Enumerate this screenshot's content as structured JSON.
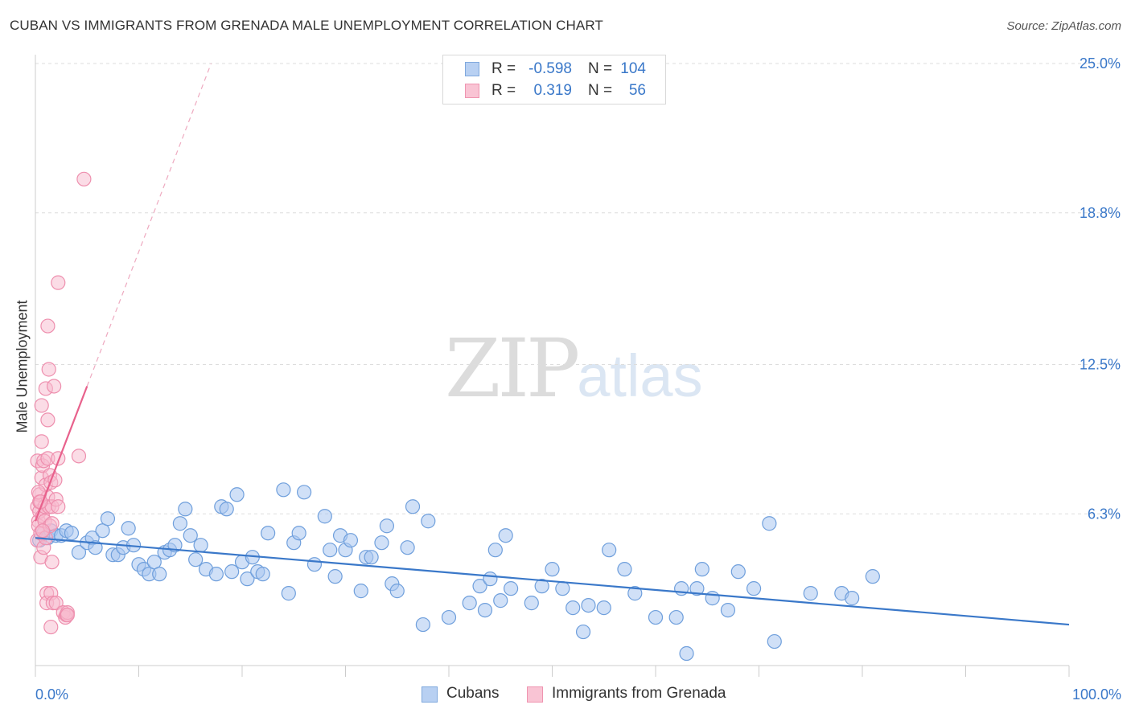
{
  "title": "CUBAN VS IMMIGRANTS FROM GRENADA MALE UNEMPLOYMENT CORRELATION CHART",
  "source": "Source: ZipAtlas.com",
  "watermark": {
    "zip": "ZIP",
    "atlas": "atlas"
  },
  "legend": {
    "r_label": "R =",
    "n_label": "N =",
    "rows": [
      {
        "r": "-0.598",
        "n": "104",
        "fill": "#b8d0f2",
        "stroke": "#7fa8dd"
      },
      {
        "r": "0.319",
        "n": "56",
        "fill": "#f9c4d4",
        "stroke": "#ef94b0"
      }
    ]
  },
  "bottom_legend": [
    {
      "label": "Cubans",
      "fill": "#b8d0f2",
      "stroke": "#7fa8dd"
    },
    {
      "label": "Immigrants from Grenada",
      "fill": "#f9c4d4",
      "stroke": "#ef94b0"
    }
  ],
  "chart_data": {
    "type": "scatter",
    "title": "CUBAN VS IMMIGRANTS FROM GRENADA MALE UNEMPLOYMENT CORRELATION CHART",
    "ylabel": "Male Unemployment",
    "xlabel": "",
    "xlim": [
      0,
      100
    ],
    "ylim": [
      0,
      25
    ],
    "x_tick_labels": [
      "0.0%",
      "100.0%"
    ],
    "y_ticks": [
      6.3,
      12.5,
      18.8,
      25.0
    ],
    "y_tick_labels": [
      "6.3%",
      "12.5%",
      "18.8%",
      "25.0%"
    ],
    "grid": true,
    "legend_position": "top-center",
    "colors": {
      "cubans": "#3a78c9",
      "grenada": "#e8618c"
    },
    "series": [
      {
        "name": "Cubans",
        "points": [
          [
            0.4,
            5.2
          ],
          [
            0.8,
            5.5
          ],
          [
            1.2,
            5.3
          ],
          [
            1.5,
            5.6
          ],
          [
            2.0,
            5.4
          ],
          [
            2.5,
            5.4
          ],
          [
            3.0,
            5.6
          ],
          [
            3.5,
            5.5
          ],
          [
            4.2,
            4.7
          ],
          [
            5.0,
            5.1
          ],
          [
            5.5,
            5.3
          ],
          [
            5.8,
            4.9
          ],
          [
            6.5,
            5.6
          ],
          [
            7.0,
            6.1
          ],
          [
            7.5,
            4.6
          ],
          [
            8.0,
            4.6
          ],
          [
            8.5,
            4.9
          ],
          [
            9.0,
            5.7
          ],
          [
            9.5,
            5.0
          ],
          [
            10.0,
            4.2
          ],
          [
            10.5,
            4.0
          ],
          [
            11.0,
            3.8
          ],
          [
            11.5,
            4.3
          ],
          [
            12.0,
            3.8
          ],
          [
            12.5,
            4.7
          ],
          [
            13.0,
            4.8
          ],
          [
            13.5,
            5.0
          ],
          [
            14.0,
            5.9
          ],
          [
            14.5,
            6.5
          ],
          [
            15.0,
            5.4
          ],
          [
            15.5,
            4.4
          ],
          [
            16.0,
            5.0
          ],
          [
            16.5,
            4.0
          ],
          [
            17.5,
            3.8
          ],
          [
            18.0,
            6.6
          ],
          [
            18.5,
            6.5
          ],
          [
            19.0,
            3.9
          ],
          [
            19.5,
            7.1
          ],
          [
            20.0,
            4.3
          ],
          [
            20.5,
            3.6
          ],
          [
            21.0,
            4.5
          ],
          [
            21.5,
            3.9
          ],
          [
            22.0,
            3.8
          ],
          [
            22.5,
            5.5
          ],
          [
            24.0,
            7.3
          ],
          [
            24.5,
            3.0
          ],
          [
            25.0,
            5.1
          ],
          [
            25.5,
            5.5
          ],
          [
            26.0,
            7.2
          ],
          [
            27.0,
            4.2
          ],
          [
            28.0,
            6.2
          ],
          [
            28.5,
            4.8
          ],
          [
            29.0,
            3.7
          ],
          [
            29.5,
            5.4
          ],
          [
            30.0,
            4.8
          ],
          [
            30.5,
            5.2
          ],
          [
            31.5,
            3.1
          ],
          [
            32.0,
            4.5
          ],
          [
            32.5,
            4.5
          ],
          [
            33.5,
            5.1
          ],
          [
            34.0,
            5.8
          ],
          [
            34.5,
            3.4
          ],
          [
            35.0,
            3.1
          ],
          [
            36.0,
            4.9
          ],
          [
            36.5,
            6.6
          ],
          [
            37.5,
            1.7
          ],
          [
            38.0,
            6.0
          ],
          [
            40.0,
            2.0
          ],
          [
            42.0,
            2.6
          ],
          [
            43.0,
            3.3
          ],
          [
            43.5,
            2.3
          ],
          [
            44.0,
            3.6
          ],
          [
            44.5,
            4.8
          ],
          [
            45.0,
            2.7
          ],
          [
            45.5,
            5.4
          ],
          [
            46.0,
            3.2
          ],
          [
            48.0,
            2.6
          ],
          [
            49.0,
            3.3
          ],
          [
            50.0,
            4.0
          ],
          [
            51.0,
            3.2
          ],
          [
            52.0,
            2.4
          ],
          [
            53.0,
            1.4
          ],
          [
            53.5,
            2.5
          ],
          [
            55.0,
            2.4
          ],
          [
            55.5,
            4.8
          ],
          [
            57.0,
            4.0
          ],
          [
            58.0,
            3.0
          ],
          [
            60.0,
            2.0
          ],
          [
            62.0,
            2.0
          ],
          [
            62.5,
            3.2
          ],
          [
            63.0,
            0.5
          ],
          [
            64.0,
            3.2
          ],
          [
            64.5,
            4.0
          ],
          [
            65.5,
            2.8
          ],
          [
            67.0,
            2.3
          ],
          [
            68.0,
            3.9
          ],
          [
            69.5,
            3.2
          ],
          [
            71.0,
            5.9
          ],
          [
            71.5,
            1.0
          ],
          [
            75.0,
            3.0
          ],
          [
            78.0,
            3.0
          ],
          [
            79.0,
            2.8
          ],
          [
            81.0,
            3.7
          ]
        ],
        "trend": {
          "x": [
            0,
            100
          ],
          "y": [
            5.3,
            1.7
          ]
        }
      },
      {
        "name": "Immigrants from Grenada",
        "points": [
          [
            0.2,
            5.2
          ],
          [
            0.2,
            6.6
          ],
          [
            0.2,
            8.5
          ],
          [
            0.3,
            6.0
          ],
          [
            0.3,
            5.8
          ],
          [
            0.4,
            6.4
          ],
          [
            0.4,
            7.1
          ],
          [
            0.4,
            6.8
          ],
          [
            0.5,
            4.5
          ],
          [
            0.5,
            5.5
          ],
          [
            0.6,
            7.8
          ],
          [
            0.6,
            10.8
          ],
          [
            0.6,
            9.3
          ],
          [
            0.7,
            8.3
          ],
          [
            0.7,
            6.2
          ],
          [
            0.8,
            8.5
          ],
          [
            0.8,
            4.9
          ],
          [
            0.9,
            6.6
          ],
          [
            0.9,
            6.0
          ],
          [
            1.0,
            7.5
          ],
          [
            1.0,
            5.3
          ],
          [
            1.0,
            11.5
          ],
          [
            1.1,
            3.0
          ],
          [
            1.1,
            2.6
          ],
          [
            1.2,
            7.0
          ],
          [
            1.2,
            10.2
          ],
          [
            1.2,
            8.6
          ],
          [
            1.2,
            14.1
          ],
          [
            1.3,
            12.3
          ],
          [
            1.3,
            6.6
          ],
          [
            1.4,
            7.9
          ],
          [
            1.4,
            5.8
          ],
          [
            1.5,
            3.0
          ],
          [
            1.5,
            1.6
          ],
          [
            1.5,
            7.6
          ],
          [
            1.6,
            5.9
          ],
          [
            1.6,
            6.6
          ],
          [
            1.6,
            4.3
          ],
          [
            1.7,
            2.6
          ],
          [
            1.9,
            7.7
          ],
          [
            2.0,
            2.6
          ],
          [
            2.0,
            6.9
          ],
          [
            2.2,
            6.6
          ],
          [
            2.2,
            8.6
          ],
          [
            2.2,
            15.9
          ],
          [
            2.7,
            2.2
          ],
          [
            2.9,
            2.0
          ],
          [
            3.0,
            2.1
          ],
          [
            3.1,
            2.2
          ],
          [
            3.1,
            2.1
          ],
          [
            4.2,
            8.7
          ],
          [
            4.7,
            20.2
          ],
          [
            0.3,
            7.2
          ],
          [
            0.5,
            6.8
          ],
          [
            0.7,
            5.6
          ],
          [
            1.8,
            11.6
          ]
        ],
        "trend_solid": {
          "x": [
            0,
            5.0
          ],
          "y": [
            6.0,
            11.6
          ]
        },
        "trend_dashed": {
          "x": [
            5.0,
            17.0
          ],
          "y": [
            11.6,
            25.0
          ]
        }
      }
    ]
  }
}
